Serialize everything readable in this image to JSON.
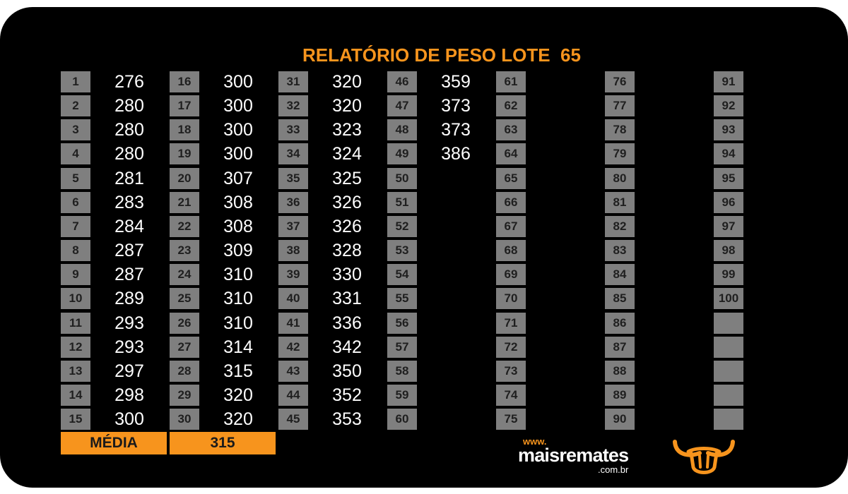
{
  "report": {
    "title": "RELATÓRIO DE PESO LOTE  65"
  },
  "grid": {
    "columns": [
      [
        {
          "n": "1",
          "w": "276"
        },
        {
          "n": "2",
          "w": "280"
        },
        {
          "n": "3",
          "w": "280"
        },
        {
          "n": "4",
          "w": "280"
        },
        {
          "n": "5",
          "w": "281"
        },
        {
          "n": "6",
          "w": "283"
        },
        {
          "n": "7",
          "w": "284"
        },
        {
          "n": "8",
          "w": "287"
        },
        {
          "n": "9",
          "w": "287"
        },
        {
          "n": "10",
          "w": "289"
        },
        {
          "n": "11",
          "w": "293"
        },
        {
          "n": "12",
          "w": "293"
        },
        {
          "n": "13",
          "w": "297"
        },
        {
          "n": "14",
          "w": "298"
        },
        {
          "n": "15",
          "w": "300"
        }
      ],
      [
        {
          "n": "16",
          "w": "300"
        },
        {
          "n": "17",
          "w": "300"
        },
        {
          "n": "18",
          "w": "300"
        },
        {
          "n": "19",
          "w": "300"
        },
        {
          "n": "20",
          "w": "307"
        },
        {
          "n": "21",
          "w": "308"
        },
        {
          "n": "22",
          "w": "308"
        },
        {
          "n": "23",
          "w": "309"
        },
        {
          "n": "24",
          "w": "310"
        },
        {
          "n": "25",
          "w": "310"
        },
        {
          "n": "26",
          "w": "310"
        },
        {
          "n": "27",
          "w": "314"
        },
        {
          "n": "28",
          "w": "315"
        },
        {
          "n": "29",
          "w": "320"
        },
        {
          "n": "30",
          "w": "320"
        }
      ],
      [
        {
          "n": "31",
          "w": "320"
        },
        {
          "n": "32",
          "w": "320"
        },
        {
          "n": "33",
          "w": "323"
        },
        {
          "n": "34",
          "w": "324"
        },
        {
          "n": "35",
          "w": "325"
        },
        {
          "n": "36",
          "w": "326"
        },
        {
          "n": "37",
          "w": "326"
        },
        {
          "n": "38",
          "w": "328"
        },
        {
          "n": "39",
          "w": "330"
        },
        {
          "n": "40",
          "w": "331"
        },
        {
          "n": "41",
          "w": "336"
        },
        {
          "n": "42",
          "w": "342"
        },
        {
          "n": "43",
          "w": "350"
        },
        {
          "n": "44",
          "w": "352"
        },
        {
          "n": "45",
          "w": "353"
        }
      ],
      [
        {
          "n": "46",
          "w": "359"
        },
        {
          "n": "47",
          "w": "373"
        },
        {
          "n": "48",
          "w": "373"
        },
        {
          "n": "49",
          "w": "386"
        },
        {
          "n": "50"
        },
        {
          "n": "51"
        },
        {
          "n": "52"
        },
        {
          "n": "53"
        },
        {
          "n": "54"
        },
        {
          "n": "55"
        },
        {
          "n": "56"
        },
        {
          "n": "57"
        },
        {
          "n": "58"
        },
        {
          "n": "59"
        },
        {
          "n": "60"
        }
      ],
      [
        {
          "n": "61"
        },
        {
          "n": "62"
        },
        {
          "n": "63"
        },
        {
          "n": "64"
        },
        {
          "n": "65"
        },
        {
          "n": "66"
        },
        {
          "n": "67"
        },
        {
          "n": "68"
        },
        {
          "n": "69"
        },
        {
          "n": "70"
        },
        {
          "n": "71"
        },
        {
          "n": "72"
        },
        {
          "n": "73"
        },
        {
          "n": "74"
        },
        {
          "n": "75"
        }
      ],
      [
        {
          "n": "76"
        },
        {
          "n": "77"
        },
        {
          "n": "78"
        },
        {
          "n": "79"
        },
        {
          "n": "80"
        },
        {
          "n": "81"
        },
        {
          "n": "82"
        },
        {
          "n": "83"
        },
        {
          "n": "84"
        },
        {
          "n": "85"
        },
        {
          "n": "86"
        },
        {
          "n": "87"
        },
        {
          "n": "88"
        },
        {
          "n": "89"
        },
        {
          "n": "90"
        }
      ],
      [
        {
          "n": "91"
        },
        {
          "n": "92"
        },
        {
          "n": "93"
        },
        {
          "n": "94"
        },
        {
          "n": "95"
        },
        {
          "n": "96"
        },
        {
          "n": "97"
        },
        {
          "n": "98"
        },
        {
          "n": "99"
        },
        {
          "n": "100"
        },
        {
          "n": ""
        },
        {
          "n": ""
        },
        {
          "n": ""
        },
        {
          "n": ""
        },
        {
          "n": ""
        }
      ]
    ]
  },
  "summary": {
    "label": "MÉDIA",
    "value": "315"
  },
  "brand": {
    "prefix": "www.",
    "name": "maisremates",
    "suffix": ".com.br",
    "logo_icon": "bull-head-icon"
  },
  "colors": {
    "background": "#000000",
    "accent": "#f7941d",
    "cell": "#7f7f7f",
    "value_text": "#ffffff"
  }
}
